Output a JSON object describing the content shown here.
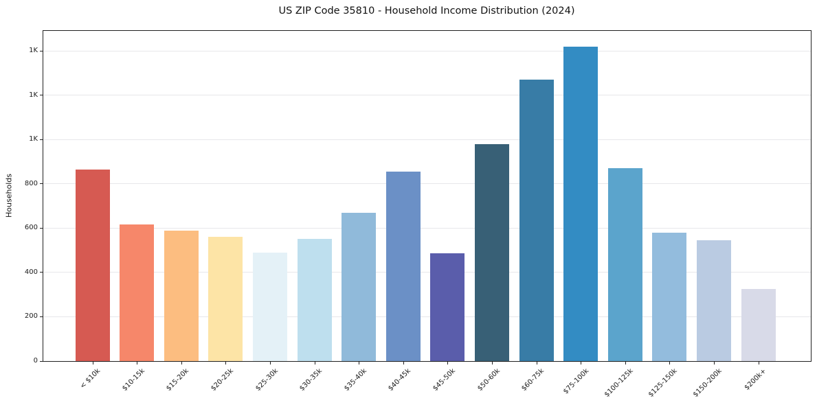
{
  "chart_data": {
    "type": "bar",
    "title": "US ZIP Code 35810 - Household Income Distribution (2024)",
    "ylabel": "Households",
    "xlabel": "",
    "categories": [
      "< $10k",
      "$10-15k",
      "$15-20k",
      "$20-25k",
      "$25-30k",
      "$30-35k",
      "$35-40k",
      "$40-45k",
      "$45-50k",
      "$50-60k",
      "$60-75k",
      "$75-100k",
      "$100-125k",
      "$125-150k",
      "$150-200k",
      "$200k+"
    ],
    "values": [
      865,
      615,
      590,
      560,
      490,
      550,
      670,
      855,
      485,
      980,
      1270,
      1420,
      870,
      580,
      545,
      325
    ],
    "bar_colors": [
      "#d65a52",
      "#f6876a",
      "#fcbd80",
      "#fde4a6",
      "#e4f1f7",
      "#bedfee",
      "#90bada",
      "#6b90c6",
      "#5a5dab",
      "#386076",
      "#387ca6",
      "#338cc3",
      "#5ba4cc",
      "#93bcdd",
      "#bacbe2",
      "#d8dae8"
    ],
    "ylim": [
      0,
      1490
    ],
    "yticks": {
      "values": [
        0,
        200,
        400,
        600,
        800,
        1000,
        1200,
        1400
      ],
      "labels": [
        "0",
        "200",
        "400",
        "600",
        "800",
        "1K",
        "1K",
        "1K"
      ]
    },
    "grid": "horizontal-light",
    "legend": "none",
    "x_tick_rotation_deg": 45,
    "background": "#ffffff",
    "spine_color": "#1f1f1f"
  }
}
